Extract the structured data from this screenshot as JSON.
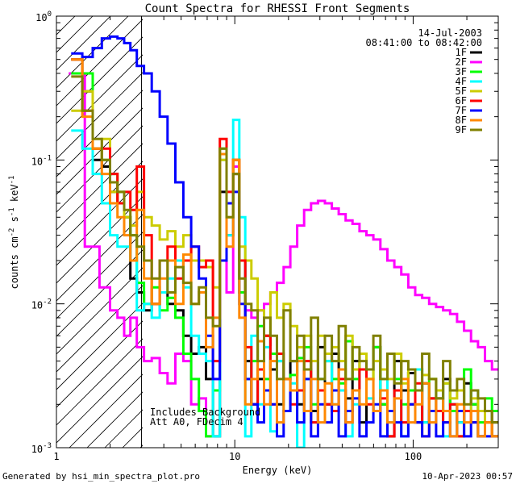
{
  "chart_data": {
    "type": "line",
    "title": "Count Spectra for RHESSI Front Segments",
    "xlabel": "Energy (keV)",
    "ylabel_parts": {
      "base": "counts cm",
      "exp1": "-2",
      "mid": " s",
      "exp2": "-1",
      "end": " keV",
      "exp3": "-1"
    },
    "x_scale": "log",
    "y_scale": "log",
    "xlim": [
      1.0,
      300
    ],
    "ylim": [
      0.001,
      1.0
    ],
    "x_ticks": [
      {
        "value": 10,
        "label": "10"
      },
      {
        "value": 100,
        "label": "100"
      }
    ],
    "x_outer_labels": {
      "left": "1"
    },
    "y_ticks": [
      {
        "value": 0.001,
        "base": "10",
        "exp": "-3"
      },
      {
        "value": 0.01,
        "base": "10",
        "exp": "-2"
      },
      {
        "value": 0.1,
        "base": "10",
        "exp": "-1"
      },
      {
        "value": 1.0,
        "base": "10",
        "exp": "0"
      }
    ],
    "hatched_region_max_energy": 3.0,
    "info_lines": [
      "14-Jul-2003",
      "08:41:00 to 08:42:00"
    ],
    "annotations": [
      "Includes Background",
      "Att A0, FDecim 4"
    ],
    "series": [
      {
        "name": "1F",
        "color": "#000000",
        "x": [
          1.3,
          1.5,
          1.7,
          1.9,
          2.1,
          2.3,
          2.5,
          2.7,
          2.95,
          3.25,
          3.6,
          4.0,
          4.4,
          4.9,
          5.4,
          6.0,
          6.6,
          7.2,
          7.9,
          8.6,
          9.4,
          10.2,
          11.0,
          11.9,
          12.9,
          14,
          15.2,
          16.5,
          18,
          19.6,
          21.4,
          23.4,
          25.6,
          28,
          30.6,
          33.5,
          36.6,
          40,
          43.7,
          47.8,
          52.3,
          57.2,
          62.6,
          68.5,
          75,
          82,
          89.7,
          98.2,
          107.4,
          117.5,
          128.6,
          140.7,
          154,
          168.5,
          184.4,
          201.8,
          220.8,
          241.6,
          264.4,
          289.4
        ],
        "y": [
          0.5,
          0.3,
          0.1,
          0.09,
          0.06,
          0.05,
          0.04,
          0.015,
          0.012,
          0.009,
          0.01,
          0.012,
          0.01,
          0.009,
          0.006,
          0.0045,
          0.005,
          0.003,
          0.0012,
          0.06,
          0.03,
          0.08,
          0.02,
          0.004,
          0.002,
          0.003,
          0.006,
          0.0035,
          0.002,
          0.003,
          0.004,
          0.002,
          0.0035,
          0.0018,
          0.005,
          0.002,
          0.0045,
          0.0025,
          0.0022,
          0.004,
          0.0015,
          0.0035,
          0.005,
          0.002,
          0.0012,
          0.004,
          0.0025,
          0.0033,
          0.0015,
          0.0028,
          0.0022,
          0.0018,
          0.003,
          0.002,
          0.0015,
          0.0028,
          0.002,
          0.0012,
          0.0018,
          0.0015
        ]
      },
      {
        "name": "2F",
        "color": "#ff00ff",
        "x": [
          1.3,
          1.6,
          1.9,
          2.1,
          2.3,
          2.5,
          2.7,
          2.95,
          3.25,
          3.6,
          4.0,
          4.4,
          4.9,
          5.4,
          6.0,
          6.6,
          7.2,
          7.9,
          8.6,
          9.4,
          10.2,
          11.0,
          11.9,
          12.9,
          14,
          15.2,
          16.5,
          18,
          19.6,
          21.4,
          23.4,
          25.6,
          28,
          30.6,
          33.5,
          36.6,
          40,
          43.7,
          47.8,
          52.3,
          57.2,
          62.6,
          68.5,
          75,
          82,
          89.7,
          98.2,
          107.4,
          117.5,
          128.6,
          140.7,
          154,
          168.5,
          184.4,
          201.8,
          220.8,
          241.6,
          264.4,
          289.4
        ],
        "y": [
          0.4,
          0.025,
          0.013,
          0.009,
          0.008,
          0.006,
          0.008,
          0.005,
          0.004,
          0.0042,
          0.0033,
          0.0028,
          0.0045,
          0.004,
          0.002,
          0.0022,
          0.0012,
          0.003,
          0.02,
          0.012,
          0.09,
          0.012,
          0.009,
          0.008,
          0.009,
          0.01,
          0.012,
          0.014,
          0.018,
          0.025,
          0.035,
          0.045,
          0.05,
          0.052,
          0.05,
          0.046,
          0.042,
          0.038,
          0.036,
          0.032,
          0.03,
          0.028,
          0.024,
          0.02,
          0.018,
          0.016,
          0.013,
          0.0115,
          0.011,
          0.01,
          0.0095,
          0.009,
          0.0085,
          0.0075,
          0.0065,
          0.0055,
          0.005,
          0.004,
          0.0035
        ]
      },
      {
        "name": "3F",
        "color": "#00ff00",
        "x": [
          1.3,
          1.5,
          1.7,
          1.9,
          2.1,
          2.3,
          2.5,
          2.7,
          2.95,
          3.25,
          3.6,
          4.0,
          4.4,
          4.9,
          5.4,
          6.0,
          6.6,
          7.2,
          7.9,
          8.6,
          9.4,
          10.2,
          11.0,
          11.9,
          12.9,
          14,
          15.2,
          16.5,
          18,
          19.6,
          21.4,
          23.4,
          25.6,
          28,
          30.6,
          33.5,
          36.6,
          40,
          43.7,
          47.8,
          52.3,
          57.2,
          62.6,
          68.5,
          75,
          82,
          89.7,
          98.2,
          107.4,
          117.5,
          128.6,
          140.7,
          154,
          168.5,
          184.4,
          201.8,
          220.8,
          241.6,
          264.4,
          289.4
        ],
        "y": [
          0.4,
          0.4,
          0.12,
          0.1,
          0.08,
          0.06,
          0.04,
          0.03,
          0.014,
          0.01,
          0.013,
          0.009,
          0.011,
          0.008,
          0.0045,
          0.003,
          0.0018,
          0.0012,
          0.0025,
          0.12,
          0.05,
          0.1,
          0.012,
          0.003,
          0.004,
          0.007,
          0.003,
          0.0045,
          0.004,
          0.003,
          0.0032,
          0.0042,
          0.005,
          0.002,
          0.003,
          0.004,
          0.003,
          0.0028,
          0.0055,
          0.003,
          0.0035,
          0.003,
          0.005,
          0.002,
          0.0045,
          0.003,
          0.002,
          0.0025,
          0.0035,
          0.0015,
          0.003,
          0.0022,
          0.0028,
          0.0018,
          0.0012,
          0.0035,
          0.002,
          0.0015,
          0.0022,
          0.0018
        ]
      },
      {
        "name": "4F",
        "color": "#00ffff",
        "x": [
          1.3,
          1.5,
          1.7,
          1.9,
          2.1,
          2.3,
          2.5,
          2.7,
          2.95,
          3.25,
          3.6,
          4.0,
          4.4,
          4.9,
          5.4,
          6.0,
          6.6,
          7.2,
          7.9,
          8.6,
          9.4,
          10.2,
          11.0,
          11.9,
          12.9,
          14,
          15.2,
          16.5,
          18,
          19.6,
          21.4,
          23.4,
          25.6,
          28,
          30.6,
          33.5,
          36.6,
          40,
          43.7,
          47.8,
          52.3,
          57.2,
          62.6,
          68.5,
          75,
          82,
          89.7,
          98.2,
          107.4,
          117.5,
          128.6,
          140.7,
          154,
          168.5,
          184.4,
          201.8,
          220.8,
          241.6,
          264.4,
          289.4
        ],
        "y": [
          0.16,
          0.12,
          0.08,
          0.05,
          0.03,
          0.025,
          0.025,
          0.02,
          0.009,
          0.01,
          0.008,
          0.012,
          0.015,
          0.02,
          0.013,
          0.006,
          0.0045,
          0.004,
          0.0012,
          0.1,
          0.03,
          0.19,
          0.04,
          0.0012,
          0.006,
          0.002,
          0.005,
          0.0013,
          0.004,
          0.0018,
          0.0028,
          0.001,
          0.003,
          0.0015,
          0.003,
          0.004,
          0.002,
          0.0025,
          0.0012,
          0.002,
          0.0035,
          0.0022,
          0.0018,
          0.003,
          0.0015,
          0.0025,
          0.0012,
          0.002,
          0.0035,
          0.0015,
          0.0018,
          0.0022,
          0.0012,
          0.002,
          0.0015,
          0.0018,
          0.0025,
          0.0012,
          0.0015,
          0.0012
        ]
      },
      {
        "name": "5F",
        "color": "#cccc00",
        "x": [
          1.3,
          1.5,
          1.7,
          1.9,
          2.1,
          2.3,
          2.5,
          2.7,
          2.95,
          3.25,
          3.6,
          4.0,
          4.4,
          4.9,
          5.4,
          6.0,
          6.6,
          7.2,
          7.9,
          8.6,
          9.4,
          10.2,
          11.0,
          11.9,
          12.9,
          14,
          15.2,
          16.5,
          18,
          19.6,
          21.4,
          23.4,
          25.6,
          28,
          30.6,
          33.5,
          36.6,
          40,
          43.7,
          47.8,
          52.3,
          57.2,
          62.6,
          68.5,
          75,
          82,
          89.7,
          98.2,
          107.4,
          117.5,
          128.6,
          140.7,
          154,
          168.5,
          184.4,
          201.8,
          220.8,
          241.6,
          264.4,
          289.4
        ],
        "y": [
          0.22,
          0.3,
          0.12,
          0.14,
          0.06,
          0.05,
          0.04,
          0.035,
          0.06,
          0.04,
          0.035,
          0.028,
          0.032,
          0.025,
          0.03,
          0.02,
          0.02,
          0.018,
          0.013,
          0.1,
          0.04,
          0.1,
          0.025,
          0.02,
          0.015,
          0.009,
          0.006,
          0.012,
          0.008,
          0.01,
          0.007,
          0.005,
          0.006,
          0.004,
          0.006,
          0.0045,
          0.005,
          0.004,
          0.006,
          0.0035,
          0.0045,
          0.003,
          0.004,
          0.0035,
          0.003,
          0.0045,
          0.0028,
          0.0035,
          0.0025,
          0.0032,
          0.003,
          0.0025,
          0.0028,
          0.0022,
          0.0025,
          0.0018,
          0.0022,
          0.0018,
          0.0015,
          0.0012
        ]
      },
      {
        "name": "6F",
        "color": "#ff0000",
        "x": [
          1.3,
          1.5,
          1.7,
          1.9,
          2.1,
          2.3,
          2.5,
          2.7,
          2.95,
          3.25,
          3.6,
          4.0,
          4.4,
          4.9,
          5.4,
          6.0,
          6.6,
          7.2,
          7.9,
          8.6,
          9.4,
          10.2,
          11.0,
          11.9,
          12.9,
          14,
          15.2,
          16.5,
          18,
          19.6,
          21.4,
          23.4,
          25.6,
          28,
          30.6,
          33.5,
          36.6,
          40,
          43.7,
          47.8,
          52.3,
          57.2,
          62.6,
          68.5,
          75,
          82,
          89.7,
          98.2,
          107.4,
          117.5,
          128.6,
          140.7,
          154,
          168.5,
          184.4,
          201.8,
          220.8,
          241.6,
          264.4,
          289.4
        ],
        "y": [
          0.5,
          0.22,
          0.12,
          0.12,
          0.08,
          0.05,
          0.06,
          0.045,
          0.09,
          0.03,
          0.01,
          0.02,
          0.025,
          0.015,
          0.02,
          0.025,
          0.018,
          0.02,
          0.004,
          0.14,
          0.06,
          0.1,
          0.02,
          0.005,
          0.002,
          0.0035,
          0.006,
          0.002,
          0.0045,
          0.003,
          0.002,
          0.0025,
          0.004,
          0.0015,
          0.0025,
          0.002,
          0.0018,
          0.003,
          0.0015,
          0.0025,
          0.0035,
          0.002,
          0.0018,
          0.0022,
          0.0012,
          0.0025,
          0.0015,
          0.002,
          0.0028,
          0.0012,
          0.0022,
          0.0018,
          0.0015,
          0.002,
          0.0012,
          0.0018,
          0.0015,
          0.0012,
          0.0015,
          0.0012
        ]
      },
      {
        "name": "7F",
        "color": "#0000ff",
        "x": [
          1.3,
          1.5,
          1.7,
          1.9,
          2.1,
          2.3,
          2.5,
          2.7,
          2.95,
          3.25,
          3.6,
          4.0,
          4.4,
          4.9,
          5.4,
          6.0,
          6.6,
          7.2,
          7.9,
          8.6,
          9.4,
          10.2,
          11.0,
          11.9,
          12.9,
          14,
          15.2,
          16.5,
          18,
          19.6,
          21.4,
          23.4,
          25.6,
          28,
          30.6,
          33.5,
          36.6,
          40,
          43.7,
          47.8,
          52.3,
          57.2,
          62.6,
          68.5,
          75,
          82,
          89.7,
          98.2,
          107.4,
          117.5,
          128.6,
          140.7,
          154,
          168.5,
          184.4,
          201.8,
          220.8,
          241.6,
          264.4,
          289.4
        ],
        "y": [
          0.55,
          0.52,
          0.6,
          0.7,
          0.72,
          0.7,
          0.65,
          0.58,
          0.45,
          0.4,
          0.3,
          0.2,
          0.13,
          0.07,
          0.04,
          0.025,
          0.015,
          0.006,
          0.003,
          0.02,
          0.05,
          0.06,
          0.01,
          0.003,
          0.002,
          0.0015,
          0.0025,
          0.002,
          0.0012,
          0.0018,
          0.0025,
          0.0015,
          0.003,
          0.0012,
          0.002,
          0.0015,
          0.0025,
          0.0012,
          0.0018,
          0.0022,
          0.0012,
          0.0015,
          0.002,
          0.0012,
          0.0018,
          0.0015,
          0.0012,
          0.002,
          0.0015,
          0.0012,
          0.0018,
          0.0012,
          0.0015,
          0.0012,
          0.0018,
          0.0012,
          0.0015,
          0.0012,
          0.0012,
          0.0012
        ]
      },
      {
        "name": "8F",
        "color": "#ff8800",
        "x": [
          1.3,
          1.5,
          1.7,
          1.9,
          2.1,
          2.3,
          2.5,
          2.7,
          2.95,
          3.25,
          3.6,
          4.0,
          4.4,
          4.9,
          5.4,
          6.0,
          6.6,
          7.2,
          7.9,
          8.6,
          9.4,
          10.2,
          11.0,
          11.9,
          12.9,
          14,
          15.2,
          16.5,
          18,
          19.6,
          21.4,
          23.4,
          25.6,
          28,
          30.6,
          33.5,
          36.6,
          40,
          43.7,
          47.8,
          52.3,
          57.2,
          62.6,
          68.5,
          75,
          82,
          89.7,
          98.2,
          107.4,
          117.5,
          128.6,
          140.7,
          154,
          168.5,
          184.4,
          201.8,
          220.8,
          241.6,
          264.4,
          289.4
        ],
        "y": [
          0.5,
          0.2,
          0.12,
          0.08,
          0.05,
          0.04,
          0.03,
          0.02,
          0.045,
          0.015,
          0.01,
          0.015,
          0.02,
          0.01,
          0.022,
          0.01,
          0.012,
          0.005,
          0.008,
          0.11,
          0.025,
          0.1,
          0.008,
          0.002,
          0.003,
          0.0055,
          0.002,
          0.004,
          0.0015,
          0.003,
          0.0025,
          0.004,
          0.0018,
          0.003,
          0.0015,
          0.0028,
          0.002,
          0.0035,
          0.0015,
          0.0025,
          0.002,
          0.003,
          0.0018,
          0.0025,
          0.0015,
          0.0022,
          0.003,
          0.0015,
          0.002,
          0.0028,
          0.0015,
          0.0022,
          0.0018,
          0.0012,
          0.002,
          0.0015,
          0.0018,
          0.0012,
          0.0015,
          0.0012
        ]
      },
      {
        "name": "9F",
        "color": "#808000",
        "x": [
          1.3,
          1.5,
          1.7,
          1.9,
          2.1,
          2.3,
          2.5,
          2.7,
          2.95,
          3.25,
          3.6,
          4.0,
          4.4,
          4.9,
          5.4,
          6.0,
          6.6,
          7.2,
          7.9,
          8.6,
          9.4,
          10.2,
          11.0,
          11.9,
          12.9,
          14,
          15.2,
          16.5,
          18,
          19.6,
          21.4,
          23.4,
          25.6,
          28,
          30.6,
          33.5,
          36.6,
          40,
          43.7,
          47.8,
          52.3,
          57.2,
          62.6,
          68.5,
          75,
          82,
          89.7,
          98.2,
          107.4,
          117.5,
          128.6,
          140.7,
          154,
          168.5,
          184.4,
          201.8,
          220.8,
          241.6,
          264.4,
          289.4
        ],
        "y": [
          0.38,
          0.22,
          0.14,
          0.1,
          0.07,
          0.06,
          0.045,
          0.03,
          0.025,
          0.02,
          0.015,
          0.02,
          0.012,
          0.018,
          0.014,
          0.01,
          0.013,
          0.008,
          0.007,
          0.12,
          0.04,
          0.08,
          0.015,
          0.01,
          0.009,
          0.004,
          0.008,
          0.006,
          0.003,
          0.009,
          0.004,
          0.006,
          0.0035,
          0.008,
          0.003,
          0.006,
          0.004,
          0.007,
          0.003,
          0.005,
          0.004,
          0.0035,
          0.006,
          0.003,
          0.0045,
          0.0028,
          0.004,
          0.0035,
          0.0025,
          0.0045,
          0.003,
          0.0022,
          0.004,
          0.0025,
          0.003,
          0.002,
          0.0025,
          0.0022,
          0.0018,
          0.0015
        ]
      }
    ]
  },
  "footer": {
    "left": "Generated by hsi_min_spectra_plot.pro",
    "right": "10-Apr-2023 00:57"
  }
}
